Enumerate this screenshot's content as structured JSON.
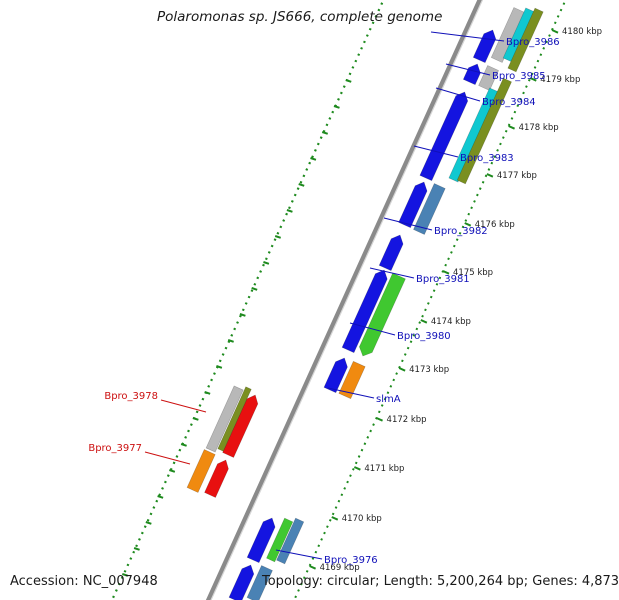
{
  "map": {
    "title": "Polaromonas sp. JS666, complete genome",
    "accession": "Accession: NC_007948",
    "topology": "Topology: circular; Length: 5,200,264 bp; Genes: 4,873",
    "ticks": [
      {
        "label": "4180 kbp",
        "kbp": 4180
      },
      {
        "label": "4179 kbp",
        "kbp": 4179
      },
      {
        "label": "4178 kbp",
        "kbp": 4178
      },
      {
        "label": "4177 kbp",
        "kbp": 4177
      },
      {
        "label": "4176 kbp",
        "kbp": 4176
      },
      {
        "label": "4175 kbp",
        "kbp": 4175
      },
      {
        "label": "4174 kbp",
        "kbp": 4174
      },
      {
        "label": "4173 kbp",
        "kbp": 4173
      },
      {
        "label": "4172 kbp",
        "kbp": 4172
      },
      {
        "label": "4171 kbp",
        "kbp": 4171
      },
      {
        "label": "4170 kbp",
        "kbp": 4170
      },
      {
        "label": "4169 kbp",
        "kbp": 4169
      }
    ],
    "genes_forward": [
      {
        "label": "Bpro_3986"
      },
      {
        "label": "Bpro_3985"
      },
      {
        "label": "Bpro_3984"
      },
      {
        "label": "Bpro_3983"
      },
      {
        "label": "Bpro_3982"
      },
      {
        "label": "Bpro_3981"
      },
      {
        "label": "Bpro_3980"
      },
      {
        "label": "slmA"
      },
      {
        "label": "Bpro_3976"
      }
    ],
    "genes_reverse": [
      {
        "label": "Bpro_3978"
      },
      {
        "label": "Bpro_3977"
      }
    ],
    "colors": {
      "forward_label": "#1010b8",
      "reverse_label": "#cc1010",
      "cds_blue": "#1414e0",
      "cds_orange": "#f08a10",
      "cds_red": "#e81010",
      "cds_green": "#40c830",
      "feature_gray": "#b8b8b8",
      "feature_olive": "#7a8f20",
      "feature_cyan": "#10c8d0",
      "feature_steelblue": "#4a82b4",
      "backbone": "#8a8a8a",
      "gc_dots": "#1e8a1e"
    }
  }
}
